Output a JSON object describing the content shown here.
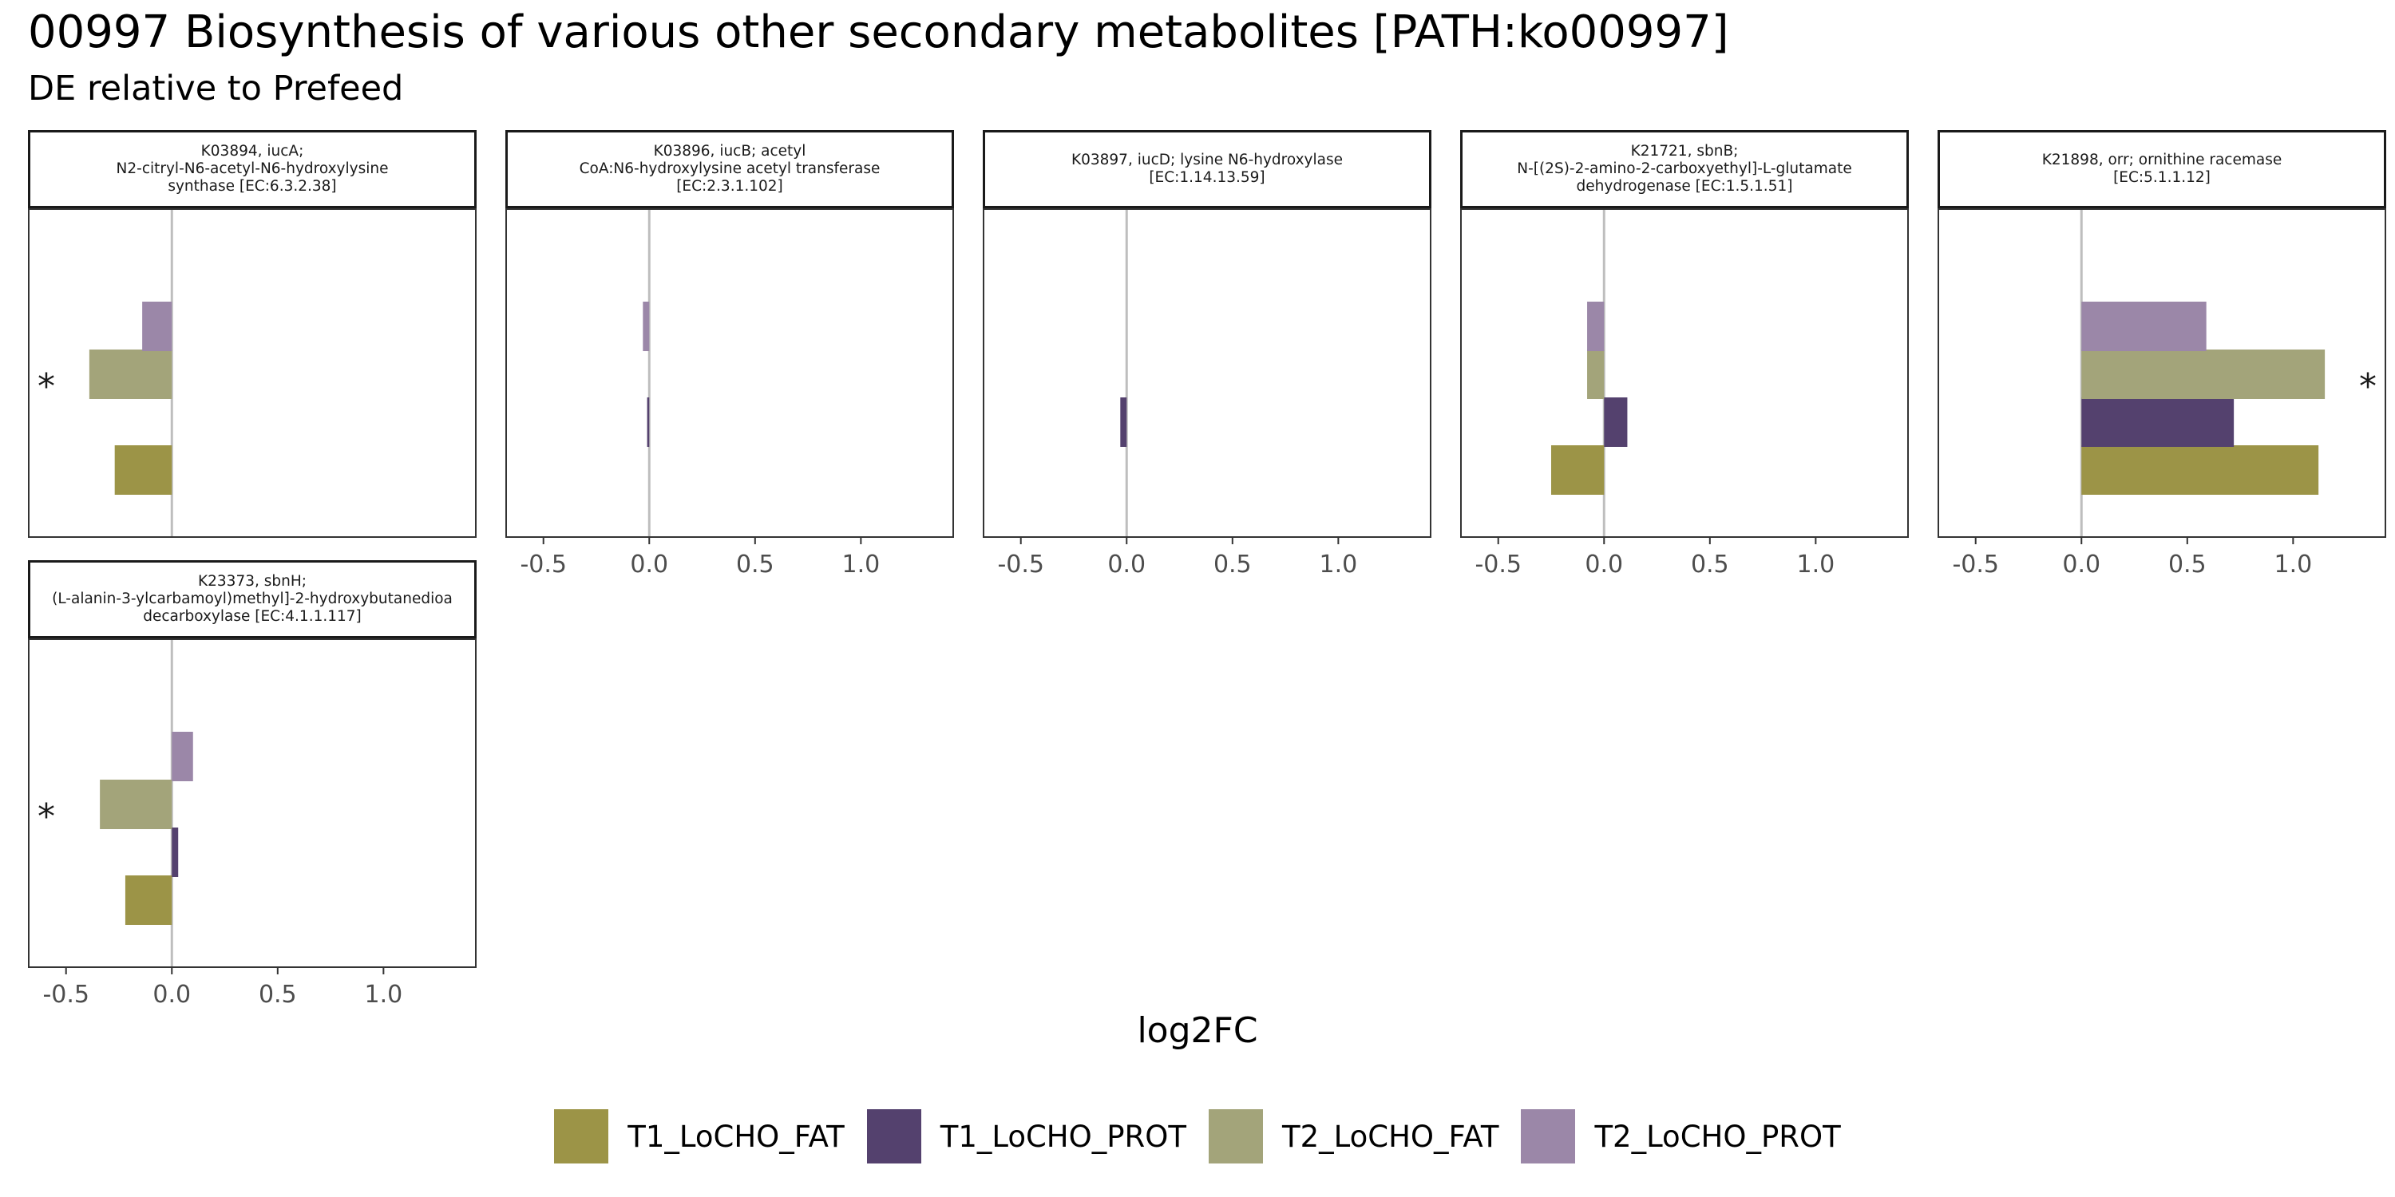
{
  "figure": {
    "title": "00997 Biosynthesis of various other secondary metabolites [PATH:ko00997]",
    "subtitle": "DE relative to Prefeed",
    "xlabel": "log2FC"
  },
  "colors": {
    "T1_LoCHO_FAT": "#9c9447",
    "T1_LoCHO_PROT": "#54416e",
    "T2_LoCHO_FAT": "#a3a47a",
    "T2_LoCHO_PROT": "#9b87a8",
    "zero_line": "#bebebe",
    "panel_border": "#333333"
  },
  "legend": {
    "items": [
      {
        "key": "T1_LoCHO_FAT",
        "label": "T1_LoCHO_FAT"
      },
      {
        "key": "T1_LoCHO_PROT",
        "label": "T1_LoCHO_PROT"
      },
      {
        "key": "T2_LoCHO_FAT",
        "label": "T2_LoCHO_FAT"
      },
      {
        "key": "T2_LoCHO_PROT",
        "label": "T2_LoCHO_PROT"
      }
    ]
  },
  "chart_data": {
    "type": "bar",
    "orientation": "horizontal",
    "facets": "wrap, 5 columns",
    "xlim": [
      -0.68,
      1.44
    ],
    "xticks": [
      -0.5,
      0.0,
      0.5,
      1.0
    ],
    "xtick_labels": [
      "-0.5",
      "0.0",
      "0.5",
      "1.0"
    ],
    "categories_bottom_to_top": [
      "T1_LoCHO_FAT",
      "T1_LoCHO_PROT",
      "T2_LoCHO_FAT",
      "T2_LoCHO_PROT"
    ],
    "grid": false,
    "legend_position": "bottom",
    "significance_marker": "*",
    "panels": [
      {
        "strip": "K03894, iucA;\nN2-citryl-N6-acetyl-N6-hydroxylysine\nsynthase [EC:6.3.2.38]",
        "values": [
          -0.27,
          null,
          -0.39,
          -0.14
        ],
        "significant": "T2_LoCHO_FAT",
        "sig_side": "left",
        "show_x_axis": false
      },
      {
        "strip": "K03896, iucB; acetyl\nCoA:N6-hydroxylysine acetyl transferase\n[EC:2.3.1.102]",
        "values": [
          null,
          -0.01,
          null,
          -0.03
        ],
        "significant": null,
        "show_x_axis": true
      },
      {
        "strip": "K03897, iucD; lysine N6-hydroxylase\n[EC:1.14.13.59]",
        "values": [
          null,
          -0.03,
          null,
          null
        ],
        "significant": null,
        "show_x_axis": true
      },
      {
        "strip": "K21721, sbnB;\nN-[(2S)-2-amino-2-carboxyethyl]-L-glutamate\ndehydrogenase [EC:1.5.1.51]",
        "values": [
          -0.25,
          0.11,
          -0.08,
          -0.08
        ],
        "significant": null,
        "show_x_axis": true
      },
      {
        "strip": "K21898, orr; ornithine racemase\n[EC:5.1.1.12]",
        "values": [
          1.12,
          0.72,
          1.15,
          0.59
        ],
        "significant": "T2_LoCHO_FAT",
        "sig_side": "right",
        "show_x_axis": true
      },
      {
        "strip": "K23373, sbnH;\n(L-alanin-3-ylcarbamoyl)methyl]-2-hydroxybutanedioa\ndecarboxylase [EC:4.1.1.117]",
        "values": [
          -0.22,
          0.03,
          -0.34,
          0.1
        ],
        "significant": "T2_LoCHO_FAT",
        "sig_side": "left",
        "show_x_axis": true
      }
    ]
  }
}
